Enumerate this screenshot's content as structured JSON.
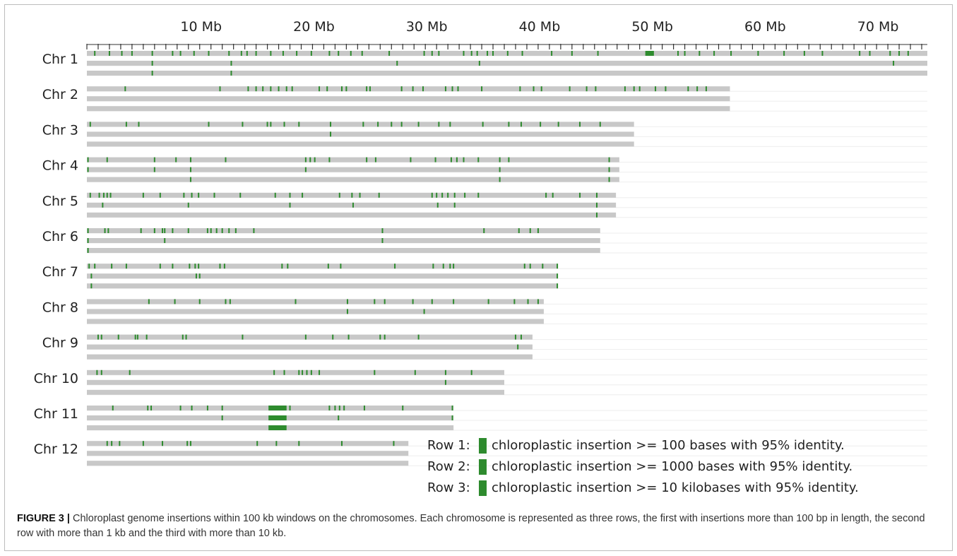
{
  "chart_data": {
    "type": "track",
    "x_unit": "Mb",
    "x_ticks": [
      10,
      20,
      30,
      40,
      50,
      60,
      70
    ],
    "x_tick_labels": [
      "10 Mb",
      "20 Mb",
      "30 Mb",
      "40 Mb",
      "50 Mb",
      "60 Mb",
      "70 Mb"
    ],
    "xlim": [
      0,
      74.5
    ],
    "minor_tick_step_mb": 1,
    "rows_per_chromosome": 3,
    "colors": {
      "track": "#c8c8c8",
      "insertion": "#2e8b2e",
      "axis": "#333333"
    },
    "chromosomes": [
      {
        "label": "Chr 1",
        "length": 74.5,
        "rows": [
          [
            0.7,
            2.0,
            3.1,
            4.0,
            5.8,
            7.6,
            8.3,
            9.5,
            10.8,
            12.6,
            13.7,
            14.2,
            15.0,
            16.3,
            17.4,
            18.6,
            19.9,
            21.5,
            22.3,
            23.4,
            24.4,
            26.8,
            29.9,
            30.6,
            31.2,
            33.4,
            34.1,
            34.6,
            35.5,
            36.0,
            37.3,
            38.6,
            41.2,
            43.0,
            45.3,
            49.8,
            50.2,
            52.4,
            53.0,
            54.3,
            55.6,
            57.1,
            59.5,
            61.8,
            63.6,
            65.2,
            68.5,
            69.4,
            71.2,
            72.0,
            72.8
          ],
          [
            5.8,
            12.8,
            27.5,
            34.8,
            71.5
          ],
          [
            5.8,
            12.8
          ]
        ],
        "blocks": [
          {
            "row": 0,
            "start": 49.5,
            "end": 50.2
          }
        ]
      },
      {
        "label": "Chr 2",
        "length": 57.0,
        "rows": [
          [
            3.4,
            11.8,
            14.3,
            15.0,
            15.6,
            16.3,
            17.0,
            17.7,
            18.2,
            20.6,
            21.3,
            22.6,
            23.0,
            24.8,
            25.1,
            27.9,
            28.9,
            29.8,
            31.8,
            32.4,
            32.9,
            35.0,
            38.4,
            39.6,
            40.3,
            42.8,
            44.3,
            45.1,
            47.7,
            48.5,
            49.0,
            50.4,
            51.3,
            53.3,
            54.1,
            54.9
          ],
          [],
          []
        ]
      },
      {
        "label": "Chr 3",
        "length": 48.5,
        "rows": [
          [
            0.3,
            3.5,
            4.6,
            10.8,
            13.8,
            16.0,
            16.3,
            17.5,
            18.8,
            21.6,
            24.5,
            25.8,
            27.0,
            27.9,
            29.4,
            31.2,
            32.2,
            35.1,
            37.4,
            38.5,
            40.2,
            41.8,
            43.7,
            45.5
          ],
          [
            21.6
          ],
          []
        ]
      },
      {
        "label": "Chr 4",
        "length": 47.2,
        "rows": [
          [
            0.1,
            1.8,
            6.0,
            7.9,
            9.2,
            12.3,
            19.4,
            19.8,
            20.2,
            21.5,
            24.8,
            25.6,
            28.7,
            30.9,
            32.3,
            32.8,
            33.4,
            34.7,
            36.6,
            37.4,
            46.3
          ],
          [
            0.1,
            6.0,
            9.2,
            19.4,
            36.6,
            46.3
          ],
          [
            9.2,
            36.6,
            46.3
          ]
        ]
      },
      {
        "label": "Chr 5",
        "length": 46.9,
        "rows": [
          [
            0.3,
            1.1,
            1.5,
            1.8,
            2.1,
            5.0,
            6.5,
            8.6,
            9.3,
            9.9,
            11.3,
            13.6,
            16.7,
            18.0,
            19.1,
            22.4,
            23.5,
            24.2,
            25.9,
            30.6,
            31.0,
            31.5,
            32.0,
            32.6,
            33.5,
            34.7,
            40.7,
            41.3,
            43.7,
            45.2
          ],
          [
            1.4,
            9.0,
            18.0,
            23.6,
            31.1,
            32.6,
            45.2
          ],
          [
            45.2
          ]
        ]
      },
      {
        "label": "Chr 6",
        "length": 45.5,
        "rows": [
          [
            0.1,
            1.6,
            1.9,
            4.8,
            6.0,
            6.9,
            6.7,
            7.6,
            9.0,
            10.7,
            11.0,
            11.5,
            12.0,
            12.6,
            13.2,
            14.8,
            26.2,
            35.2,
            38.3,
            39.3,
            40.0
          ],
          [
            0.1,
            6.9,
            26.2
          ],
          [
            0.1
          ]
        ]
      },
      {
        "label": "Chr 7",
        "length": 41.7,
        "rows": [
          [
            0.2,
            0.7,
            2.2,
            3.5,
            6.5,
            7.6,
            9.1,
            9.6,
            9.9,
            11.8,
            12.2,
            17.3,
            17.8,
            21.4,
            22.5,
            27.3,
            30.7,
            31.6,
            32.2,
            32.5,
            38.8,
            39.3,
            40.4,
            41.7
          ],
          [
            0.4,
            9.7,
            10.0,
            41.7
          ],
          [
            0.4,
            41.7
          ]
        ]
      },
      {
        "label": "Chr 8",
        "length": 40.5,
        "rows": [
          [
            5.5,
            7.8,
            10.0,
            12.3,
            12.7,
            18.5,
            23.1,
            25.5,
            26.4,
            28.9,
            30.6,
            32.5,
            35.6,
            37.9,
            39.1,
            40.0
          ],
          [
            23.1,
            29.9
          ],
          []
        ]
      },
      {
        "label": "Chr 9",
        "length": 39.5,
        "rows": [
          [
            1.0,
            1.3,
            2.8,
            4.3,
            4.5,
            5.3,
            8.5,
            8.8,
            13.8,
            19.4,
            21.8,
            23.2,
            26.0,
            26.4,
            29.4,
            38.0,
            38.5
          ],
          [
            38.2
          ],
          []
        ]
      },
      {
        "label": "Chr 10",
        "length": 37.0,
        "rows": [
          [
            0.9,
            1.3,
            3.8,
            16.6,
            17.5,
            18.8,
            19.1,
            19.5,
            19.9,
            20.6,
            25.5,
            29.1,
            31.8,
            34.1
          ],
          [
            31.8
          ],
          []
        ]
      },
      {
        "label": "Chr 11",
        "length": 32.5,
        "rows": [
          [
            2.3,
            5.4,
            5.7,
            8.3,
            9.3,
            10.7,
            12.0,
            18.0,
            21.5,
            22.0,
            22.4,
            22.8,
            24.6,
            28.0,
            32.4
          ],
          [
            12.0,
            22.3,
            32.4
          ],
          []
        ],
        "blocks": [
          {
            "row": 0,
            "start": 16.1,
            "end": 17.7
          },
          {
            "row": 1,
            "start": 16.1,
            "end": 17.7
          },
          {
            "row": 2,
            "start": 16.1,
            "end": 17.7
          }
        ]
      },
      {
        "label": "Chr 12",
        "length": 28.5,
        "rows": [
          [
            1.8,
            2.2,
            2.9,
            5.0,
            6.7,
            8.9,
            9.2,
            15.1,
            16.8,
            18.8,
            22.6,
            27.2
          ],
          [],
          []
        ]
      }
    ],
    "legend": [
      {
        "prefix": "Row 1:",
        "text": "chloroplastic insertion >= 100 bases with 95% identity."
      },
      {
        "prefix": "Row 2:",
        "text": "chloroplastic insertion >= 1000 bases with 95% identity."
      },
      {
        "prefix": "Row 3:",
        "text": "chloroplastic insertion >= 10 kilobases with 95% identity."
      }
    ]
  },
  "caption": {
    "label": "FIGURE 3 |",
    "text": " Chloroplast genome insertions within 100 kb windows on the chromosomes. Each chromosome is represented as three rows, the first with insertions more than 100 bp in length, the second row with more than 1 kb and the third with more than 10 kb."
  }
}
